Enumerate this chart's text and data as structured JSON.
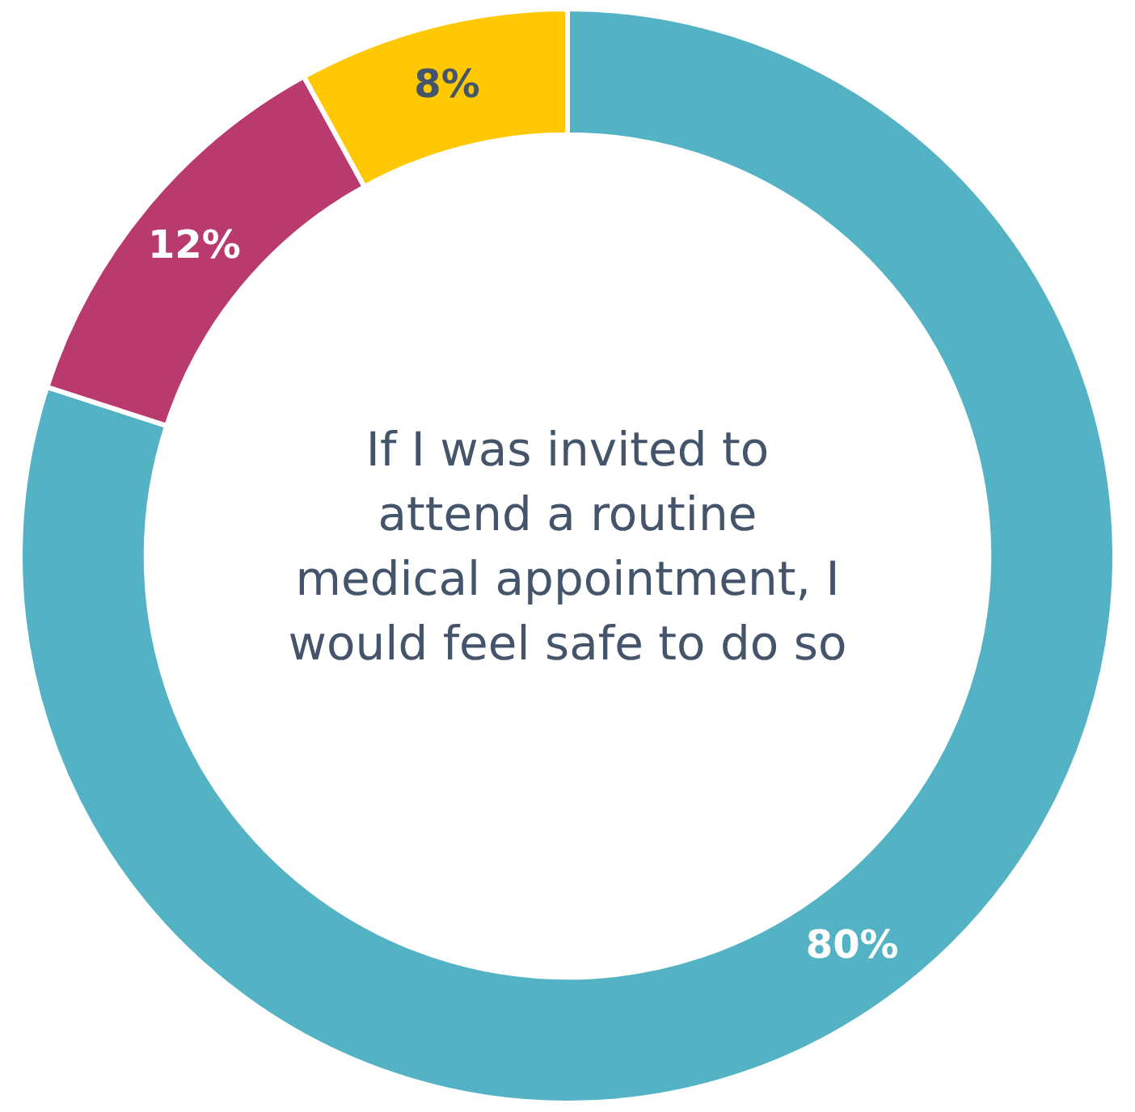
{
  "chart_data": {
    "type": "donut",
    "title": "If I was invited to attend a routine medical appointment, I would feel safe to do so",
    "categories": [
      null,
      null,
      null
    ],
    "values": [
      80,
      12,
      8
    ],
    "colors": [
      "#53b3c5",
      "#b93a6e",
      "#ffc800"
    ],
    "value_labels": [
      "80%",
      "12%",
      "8%"
    ],
    "legend": false
  }
}
